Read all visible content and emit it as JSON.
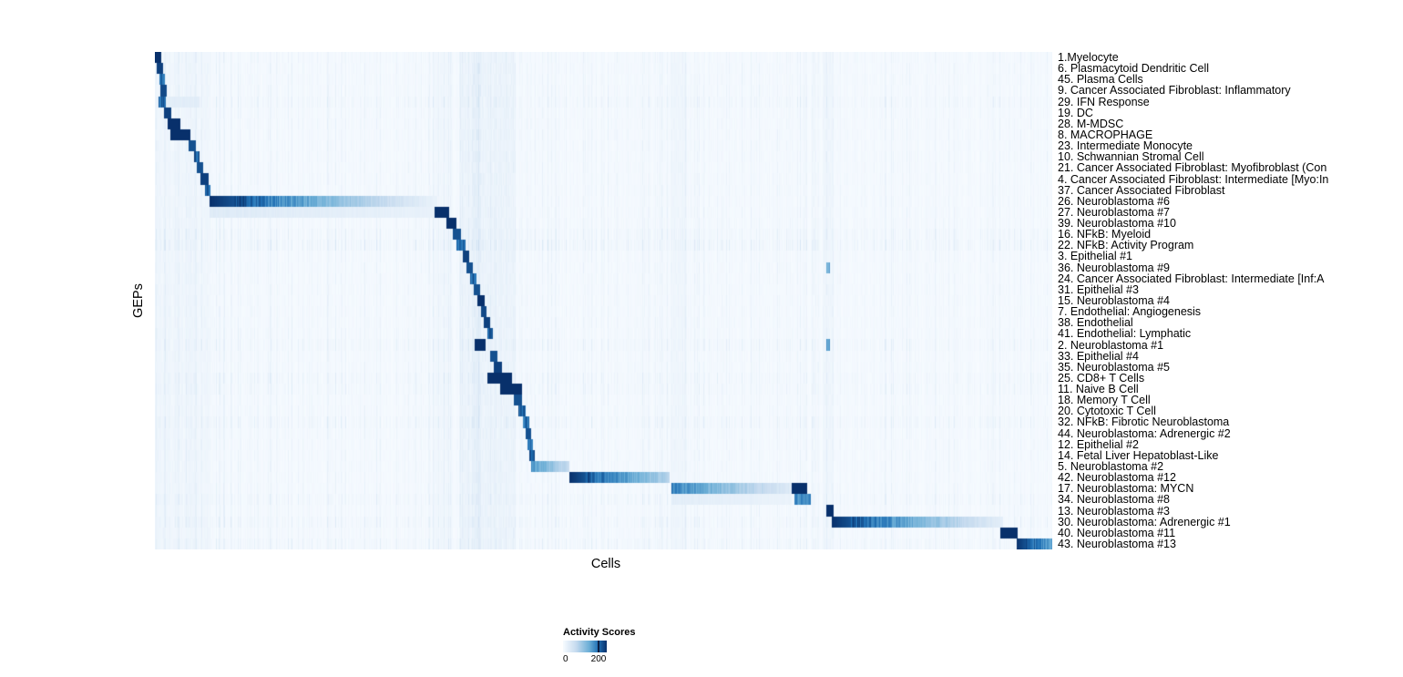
{
  "chart_data": {
    "type": "heatmap",
    "xlabel": "Cells",
    "ylabel": "GEPs",
    "legend": {
      "title": "Activity Scores",
      "tick_labels": [
        "0",
        "200"
      ],
      "min": 0,
      "max": 200
    },
    "colors": {
      "low": "#f7fbff",
      "mid": "#6baed6",
      "high": "#08306b"
    },
    "colormap_stops": [
      [
        0,
        247,
        251,
        255
      ],
      [
        60,
        198,
        219,
        239
      ],
      [
        120,
        107,
        174,
        214
      ],
      [
        160,
        33,
        113,
        181
      ],
      [
        200,
        8,
        48,
        107
      ]
    ],
    "rows": [
      {
        "label": "1.Myelocyte",
        "blocks": [
          {
            "start": 0.0,
            "end": 0.007,
            "value": 200
          }
        ]
      },
      {
        "label": "6. Plasmacytoid Dendritic Cell",
        "blocks": [
          {
            "start": 0.002,
            "end": 0.009,
            "value": 190
          }
        ]
      },
      {
        "label": "45. Plasma Cells",
        "blocks": [
          {
            "start": 0.005,
            "end": 0.011,
            "value": 170
          }
        ]
      },
      {
        "label": "9. Cancer Associated Fibroblast: Inflammatory",
        "blocks": [
          {
            "start": 0.006,
            "end": 0.013,
            "value": 185
          }
        ]
      },
      {
        "label": "29. IFN Response",
        "blocks": [
          {
            "start": 0.004,
            "end": 0.012,
            "value": 170
          },
          {
            "start": 0.012,
            "end": 0.05,
            "value": 25
          }
        ],
        "speckle": 1.5
      },
      {
        "label": "19. DC",
        "blocks": [
          {
            "start": 0.01,
            "end": 0.018,
            "value": 190
          }
        ]
      },
      {
        "label": "28. M-MDSC",
        "blocks": [
          {
            "start": 0.014,
            "end": 0.028,
            "value": 200
          }
        ]
      },
      {
        "label": "8. MACROPHAGE",
        "blocks": [
          {
            "start": 0.017,
            "end": 0.04,
            "value": 200
          }
        ]
      },
      {
        "label": "23. Intermediate Monocyte",
        "blocks": [
          {
            "start": 0.038,
            "end": 0.046,
            "value": 180
          }
        ]
      },
      {
        "label": "10. Schwannian Stromal Cell",
        "blocks": [
          {
            "start": 0.044,
            "end": 0.05,
            "value": 170
          }
        ]
      },
      {
        "label": "21. Cancer Associated Fibroblast: Myofibroblast (Con",
        "blocks": [
          {
            "start": 0.047,
            "end": 0.054,
            "value": 180
          }
        ]
      },
      {
        "label": "4. Cancer Associated Fibroblast: Intermediate [Myo:In",
        "blocks": [
          {
            "start": 0.051,
            "end": 0.06,
            "value": 190
          }
        ]
      },
      {
        "label": "37. Cancer Associated Fibroblast",
        "blocks": [
          {
            "start": 0.056,
            "end": 0.062,
            "value": 170
          }
        ]
      },
      {
        "label": "26. Neuroblastoma #6",
        "blocks": [
          {
            "start": 0.061,
            "end": 0.315,
            "value": 200,
            "value_end": 15
          }
        ]
      },
      {
        "label": "27. Neuroblastoma #7",
        "blocks": [
          {
            "start": 0.061,
            "end": 0.31,
            "value": 30,
            "value_end": 18
          },
          {
            "start": 0.312,
            "end": 0.328,
            "value": 200
          }
        ]
      },
      {
        "label": "39. Neuroblastoma #10",
        "blocks": [
          {
            "start": 0.325,
            "end": 0.336,
            "value": 200
          }
        ]
      },
      {
        "label": "16. NFkB: Myeloid",
        "blocks": [
          {
            "start": 0.332,
            "end": 0.341,
            "value": 180
          }
        ],
        "speckle": 1.6
      },
      {
        "label": "22. NFkB: Activity Program",
        "blocks": [
          {
            "start": 0.336,
            "end": 0.346,
            "value": 165
          }
        ],
        "speckle": 2.0
      },
      {
        "label": "3. Epithelial #1",
        "blocks": [
          {
            "start": 0.343,
            "end": 0.35,
            "value": 190
          }
        ]
      },
      {
        "label": "36. Neuroblastoma #9",
        "blocks": [
          {
            "start": 0.347,
            "end": 0.354,
            "value": 180
          },
          {
            "start": 0.748,
            "end": 0.752,
            "value": 120
          }
        ]
      },
      {
        "label": "24. Cancer Associated Fibroblast: Intermediate [Inf:A",
        "blocks": [
          {
            "start": 0.351,
            "end": 0.358,
            "value": 170
          }
        ]
      },
      {
        "label": "31. Epithelial #3",
        "blocks": [
          {
            "start": 0.355,
            "end": 0.362,
            "value": 180
          }
        ]
      },
      {
        "label": "15. Neuroblastoma #4",
        "blocks": [
          {
            "start": 0.359,
            "end": 0.368,
            "value": 200
          }
        ]
      },
      {
        "label": "7. Endothelial: Angiogenesis",
        "blocks": [
          {
            "start": 0.363,
            "end": 0.37,
            "value": 185
          }
        ]
      },
      {
        "label": "38. Endothelial",
        "blocks": [
          {
            "start": 0.367,
            "end": 0.374,
            "value": 190
          }
        ]
      },
      {
        "label": "41. Endothelial: Lymphatic",
        "blocks": [
          {
            "start": 0.371,
            "end": 0.377,
            "value": 170
          }
        ]
      },
      {
        "label": "2. Neuroblastoma #1",
        "blocks": [
          {
            "start": 0.356,
            "end": 0.369,
            "value": 200
          },
          {
            "start": 0.748,
            "end": 0.752,
            "value": 130
          }
        ],
        "speckle": 1.5
      },
      {
        "label": "33. Epithelial #4",
        "blocks": [
          {
            "start": 0.374,
            "end": 0.382,
            "value": 180
          }
        ]
      },
      {
        "label": "35. Neuroblastoma #5",
        "blocks": [
          {
            "start": 0.378,
            "end": 0.387,
            "value": 190
          }
        ]
      },
      {
        "label": "25. CD8+ T Cells",
        "blocks": [
          {
            "start": 0.371,
            "end": 0.398,
            "value": 200
          }
        ],
        "speckle": 1.5
      },
      {
        "label": "11. Naive B Cell",
        "blocks": [
          {
            "start": 0.385,
            "end": 0.409,
            "value": 200
          }
        ],
        "speckle": 1.4
      },
      {
        "label": "18. Memory T Cell",
        "blocks": [
          {
            "start": 0.4,
            "end": 0.409,
            "value": 180
          }
        ]
      },
      {
        "label": "20. Cytotoxic T Cell",
        "blocks": [
          {
            "start": 0.405,
            "end": 0.413,
            "value": 170
          }
        ]
      },
      {
        "label": "32. NFkB: Fibrotic Neuroblastoma",
        "blocks": [
          {
            "start": 0.41,
            "end": 0.417,
            "value": 160
          }
        ],
        "speckle": 1.6
      },
      {
        "label": "44. Neuroblastoma: Adrenergic #2",
        "blocks": [
          {
            "start": 0.413,
            "end": 0.419,
            "value": 180
          }
        ]
      },
      {
        "label": "12. Epithelial #2",
        "blocks": [
          {
            "start": 0.415,
            "end": 0.421,
            "value": 160
          }
        ]
      },
      {
        "label": "14. Fetal Liver Hepatoblast-Like",
        "blocks": [
          {
            "start": 0.417,
            "end": 0.423,
            "value": 170
          }
        ]
      },
      {
        "label": "5. Neuroblastoma #2",
        "blocks": [
          {
            "start": 0.419,
            "end": 0.462,
            "value": 140,
            "value_end": 55
          }
        ]
      },
      {
        "label": "42. Neuroblastoma #12",
        "blocks": [
          {
            "start": 0.462,
            "end": 0.574,
            "value": 200,
            "value_end": 70
          }
        ]
      },
      {
        "label": "17. Neuroblastoma: MYCN",
        "blocks": [
          {
            "start": 0.576,
            "end": 0.71,
            "value": 150,
            "value_end": 30
          },
          {
            "start": 0.71,
            "end": 0.727,
            "value": 200
          }
        ]
      },
      {
        "label": "34. Neuroblastoma #8",
        "blocks": [
          {
            "start": 0.576,
            "end": 0.71,
            "value": 25,
            "value_end": 15
          },
          {
            "start": 0.713,
            "end": 0.731,
            "value": 140
          }
        ],
        "speckle": 1.5
      },
      {
        "label": "13. Neuroblastoma #3",
        "blocks": [
          {
            "start": 0.748,
            "end": 0.756,
            "value": 200
          }
        ]
      },
      {
        "label": "30. Neuroblastoma: Adrenergic #1",
        "blocks": [
          {
            "start": 0.754,
            "end": 0.945,
            "value": 200,
            "value_end": 22
          }
        ],
        "speckle": 1.5
      },
      {
        "label": "40. Neuroblastoma #11",
        "blocks": [
          {
            "start": 0.942,
            "end": 0.961,
            "value": 200
          }
        ]
      },
      {
        "label": "43. Neuroblastoma #13",
        "blocks": [
          {
            "start": 0.96,
            "end": 1.0,
            "value": 200,
            "value_end": 120
          }
        ],
        "speckle": 1.5
      }
    ],
    "column_streaks": [
      {
        "start": 0.0,
        "end": 0.062,
        "value": 6
      },
      {
        "start": 0.31,
        "end": 0.33,
        "value": 5
      },
      {
        "start": 0.34,
        "end": 0.402,
        "value": 10
      },
      {
        "start": 0.355,
        "end": 0.363,
        "value": 8
      },
      {
        "start": 0.575,
        "end": 0.592,
        "value": 6
      },
      {
        "start": 0.745,
        "end": 0.756,
        "value": 7
      }
    ]
  }
}
